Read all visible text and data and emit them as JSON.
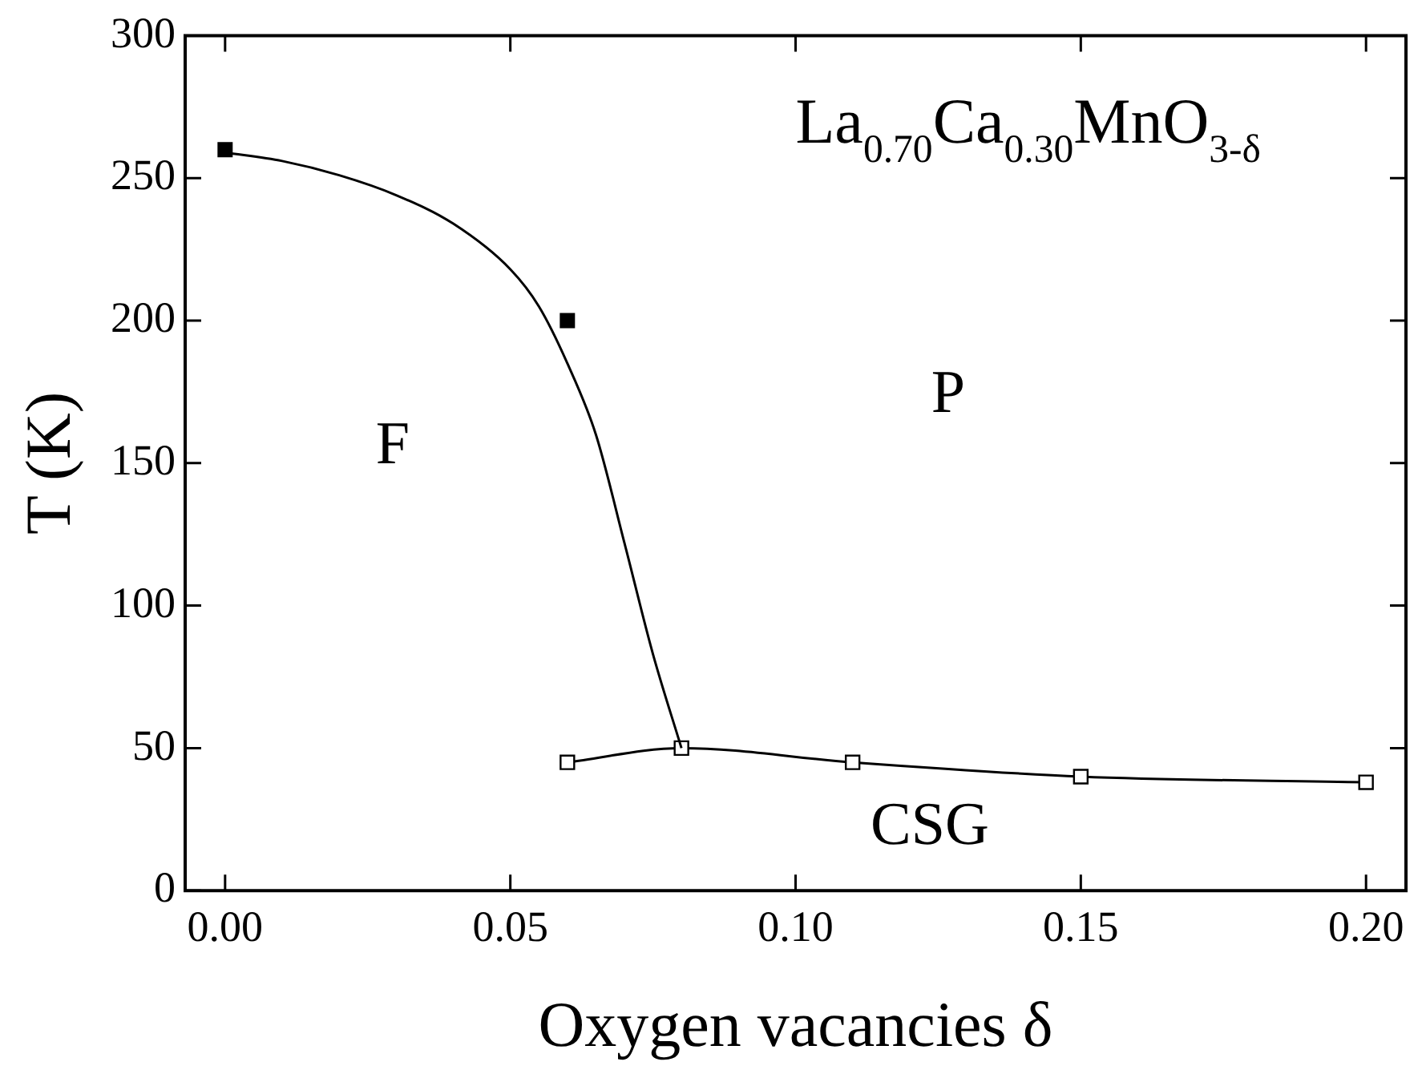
{
  "chart_data": {
    "type": "scatter",
    "xlabel": "Oxygen vacancies δ",
    "ylabel": "T (K)",
    "xlim": [
      -0.007,
      0.207
    ],
    "xticks": [
      {
        "value": 0,
        "label": "0.00"
      },
      {
        "value": 0.05,
        "label": "0.05"
      },
      {
        "value": 0.1,
        "label": "0.10"
      },
      {
        "value": 0.15,
        "label": "0.15"
      },
      {
        "value": 0.2,
        "label": "0.20"
      }
    ],
    "ylim": [
      0,
      300
    ],
    "yticks": [
      0,
      50,
      100,
      150,
      200,
      250,
      300
    ],
    "grid": false,
    "legend": false,
    "series": [
      {
        "type": "line",
        "color": "#000000",
        "marker": "none",
        "x": [
          0,
          0.01,
          0.02,
          0.03,
          0.04,
          0.05,
          0.055,
          0.06,
          0.065,
          0.07,
          0.075,
          0.08
        ],
        "values": [
          259,
          256,
          251,
          244,
          234,
          218,
          205,
          185,
          160,
          122,
          83,
          50
        ]
      },
      {
        "type": "scatter",
        "color": "#000000",
        "marker": "square",
        "x": [
          0,
          0.06
        ],
        "values": [
          260,
          200
        ]
      },
      {
        "type": "line",
        "color": "#000000",
        "marker": "square",
        "x": [
          0.06,
          0.08,
          0.11,
          0.15,
          0.2
        ],
        "values": [
          45,
          50,
          45,
          40,
          38
        ]
      }
    ],
    "annotations": [
      "La$_{0.70}$Ca$_{0.30}$MnO$_{3-δ}$",
      "F",
      "P",
      "CSG"
    ]
  }
}
